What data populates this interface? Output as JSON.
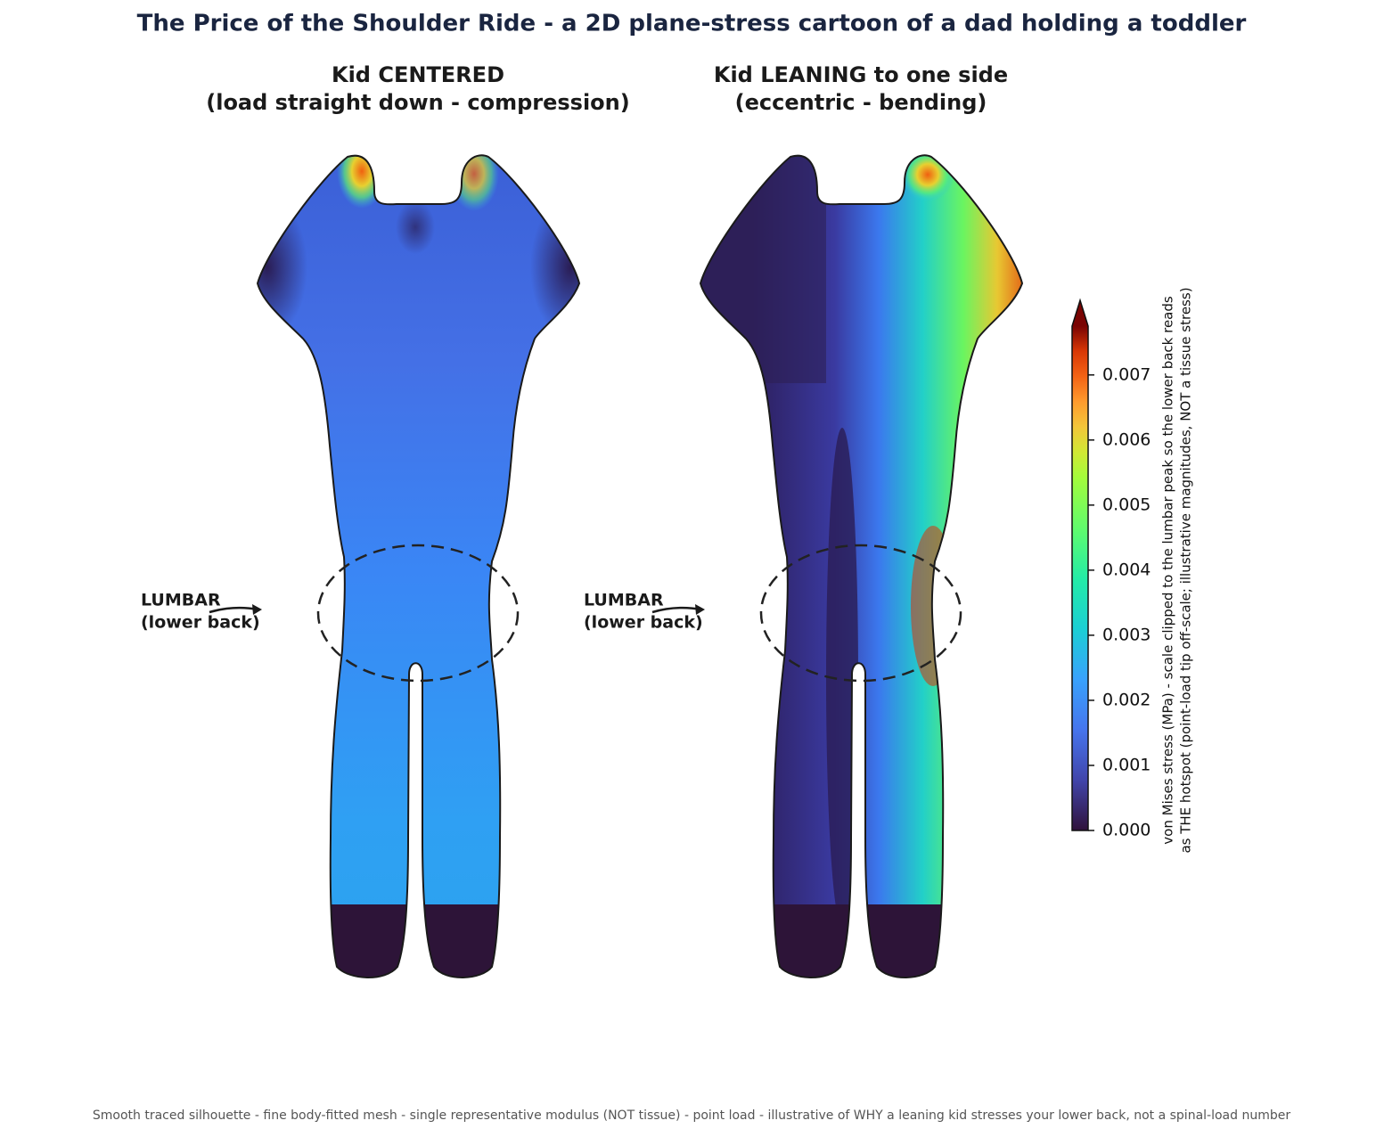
{
  "chart_data": {
    "type": "stress-map",
    "title": "The Price of the Shoulder Ride - a 2D plane-stress cartoon of a dad holding a toddler",
    "panels": [
      {
        "title": [
          "Kid CENTERED",
          "(load straight down - compression)"
        ],
        "annotation": [
          "LUMBAR",
          "(lower back)"
        ]
      },
      {
        "title": [
          "Kid LEANING to one side",
          "(eccentric - bending)"
        ],
        "annotation": [
          "LUMBAR",
          "(lower back)"
        ]
      }
    ],
    "colorbar": {
      "colormap": "turbo",
      "label": [
        "von Mises stress (MPa) - scale clipped to the lumbar peak so the lower back reads",
        "as THE hotspot (point-load tip off-scale; illustrative magnitudes, NOT a tissue stress)"
      ],
      "lim": [
        0,
        0.00775
      ],
      "ticks": [
        {
          "value": 0,
          "label": "0.000"
        },
        {
          "value": 0.001,
          "label": "0.001"
        },
        {
          "value": 0.002,
          "label": "0.002"
        },
        {
          "value": 0.003,
          "label": "0.003"
        },
        {
          "value": 0.004,
          "label": "0.004"
        },
        {
          "value": 0.005,
          "label": "0.005"
        },
        {
          "value": 0.006,
          "label": "0.006"
        },
        {
          "value": 0.007,
          "label": "0.007"
        }
      ]
    },
    "footer": "Smooth traced silhouette - fine body-fitted mesh - single representative modulus (NOT tissue) - point load - illustrative of WHY a leaning kid stresses your lower back, not a spinal-load number"
  }
}
